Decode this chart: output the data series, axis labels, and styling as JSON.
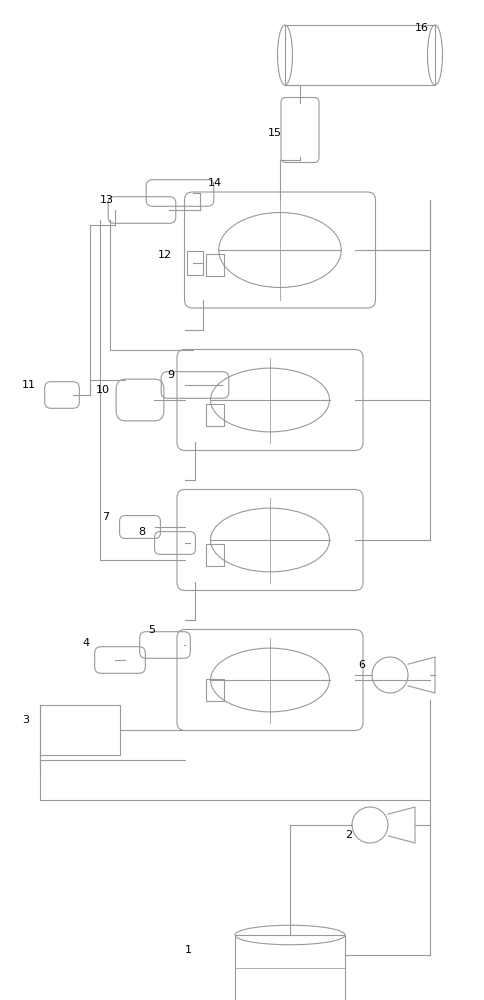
{
  "bg_color": "#ffffff",
  "lc": "#999999",
  "lw": 0.8,
  "fig_width": 4.84,
  "fig_height": 10.0,
  "dpi": 100
}
